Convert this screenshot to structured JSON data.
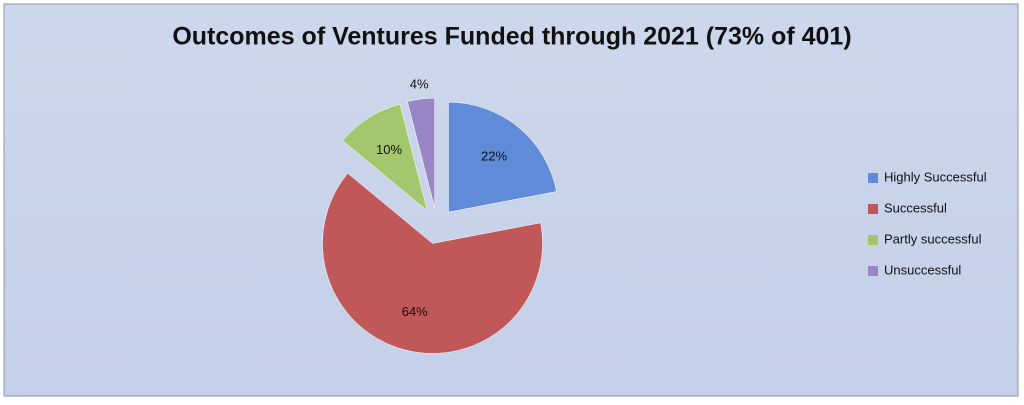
{
  "chart_data": {
    "type": "pie",
    "title": "Outcomes of Ventures Funded through 2021 (73% of 401)",
    "categories": [
      "Highly Successful",
      "Successful",
      "Partly successful",
      "Unsuccessful"
    ],
    "values": [
      22,
      64,
      10,
      4
    ],
    "value_labels": [
      "22%",
      "64%",
      "10%",
      "4%"
    ],
    "colors": [
      "#5f8bd8",
      "#c0585a",
      "#a3c76c",
      "#9a86c6"
    ],
    "legend": "right"
  }
}
